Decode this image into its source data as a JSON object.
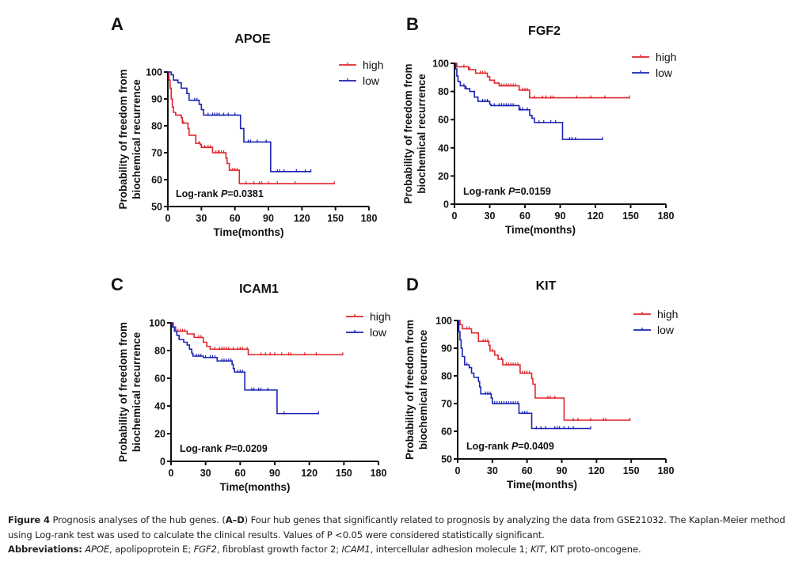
{
  "colors": {
    "high": "#e0242a",
    "low": "#1a23b4",
    "axis": "#111111",
    "text": "#111111"
  },
  "chart_data": [
    {
      "panel": "A",
      "type": "line",
      "subtype": "kaplan-meier",
      "title": "APOE",
      "xlabel": "Time(months)",
      "ylabel": [
        "Probability of freedom from",
        "biochemical recurrence"
      ],
      "xlim": [
        0,
        180
      ],
      "xticks": [
        0,
        30,
        60,
        90,
        120,
        150,
        180
      ],
      "ylim": [
        50,
        100
      ],
      "yticks": [
        50,
        60,
        70,
        80,
        90,
        100
      ],
      "legend": {
        "position": "top-right",
        "entries": [
          "high",
          "low"
        ]
      },
      "annotation": {
        "prefix": "Log-rank ",
        "italic": "P",
        "suffix": "=0.0381"
      },
      "series": [
        {
          "name": "high",
          "steps": [
            [
              0,
              100
            ],
            [
              1,
              97
            ],
            [
              2,
              94
            ],
            [
              3,
              90
            ],
            [
              4,
              87
            ],
            [
              5,
              85
            ],
            [
              7,
              84
            ],
            [
              12,
              83
            ],
            [
              13,
              81
            ],
            [
              18,
              79
            ],
            [
              19,
              76.5
            ],
            [
              25,
              73.5
            ],
            [
              29,
              73
            ],
            [
              30,
              72
            ],
            [
              40,
              70
            ],
            [
              52,
              68
            ],
            [
              53,
              66
            ],
            [
              55,
              63.5
            ],
            [
              64,
              58.5
            ],
            [
              149,
              58.5
            ]
          ],
          "censored": [
            14,
            28,
            33,
            36,
            38,
            43,
            45,
            46,
            48,
            50,
            58,
            60,
            62,
            70,
            77,
            82,
            84,
            90,
            98,
            114,
            149
          ]
        },
        {
          "name": "low",
          "steps": [
            [
              0,
              100
            ],
            [
              3,
              99
            ],
            [
              5,
              97
            ],
            [
              9,
              96
            ],
            [
              12,
              94
            ],
            [
              17,
              92
            ],
            [
              19,
              89.5
            ],
            [
              28,
              88
            ],
            [
              30,
              86
            ],
            [
              32,
              84
            ],
            [
              65,
              79
            ],
            [
              68,
              74
            ],
            [
              92,
              63
            ],
            [
              128,
              63
            ]
          ],
          "censored": [
            24,
            26,
            36,
            40,
            42,
            44,
            46,
            50,
            54,
            60,
            72,
            74,
            80,
            88,
            98,
            100,
            104,
            115,
            123,
            128
          ]
        }
      ]
    },
    {
      "panel": "B",
      "type": "line",
      "subtype": "kaplan-meier",
      "title": "FGF2",
      "xlabel": "Time(months)",
      "ylabel": [
        "Probability of freedom from",
        "biochemical recurrence"
      ],
      "xlim": [
        0,
        180
      ],
      "xticks": [
        0,
        30,
        60,
        90,
        120,
        150,
        180
      ],
      "ylim": [
        0,
        100
      ],
      "yticks": [
        0,
        20,
        40,
        60,
        80,
        100
      ],
      "legend": {
        "position": "top-right",
        "entries": [
          "high",
          "low"
        ]
      },
      "annotation": {
        "prefix": "Log-rank ",
        "italic": "P",
        "suffix": "=0.0159"
      },
      "series": [
        {
          "name": "high",
          "steps": [
            [
              0,
              100
            ],
            [
              2,
              97.5
            ],
            [
              12,
              95.5
            ],
            [
              18,
              93
            ],
            [
              28,
              90.5
            ],
            [
              30,
              88
            ],
            [
              34,
              86
            ],
            [
              38,
              84
            ],
            [
              55,
              81
            ],
            [
              64,
              75.5
            ],
            [
              149,
              75.5
            ]
          ],
          "censored": [
            8,
            13,
            22,
            24,
            26,
            40,
            42,
            44,
            46,
            48,
            50,
            52,
            58,
            60,
            62,
            68,
            75,
            78,
            82,
            84,
            104,
            116,
            128,
            149
          ]
        },
        {
          "name": "low",
          "steps": [
            [
              0,
              100
            ],
            [
              1,
              96
            ],
            [
              2,
              91
            ],
            [
              3,
              87
            ],
            [
              5,
              84
            ],
            [
              9,
              82
            ],
            [
              13,
              80
            ],
            [
              17,
              76
            ],
            [
              20,
              73
            ],
            [
              30,
              71
            ],
            [
              31,
              70
            ],
            [
              55,
              67
            ],
            [
              64,
              63
            ],
            [
              66,
              61
            ],
            [
              68,
              58
            ],
            [
              92,
              46
            ],
            [
              126,
              46
            ]
          ],
          "censored": [
            8,
            10,
            24,
            26,
            28,
            34,
            38,
            40,
            42,
            44,
            46,
            48,
            50,
            56,
            58,
            62,
            72,
            76,
            82,
            86,
            98,
            100,
            103,
            126
          ]
        }
      ]
    },
    {
      "panel": "C",
      "type": "line",
      "subtype": "kaplan-meier",
      "title": "ICAM1",
      "xlabel": "Time(months)",
      "ylabel": [
        "Probability of freedom from",
        "biochemical recurrence"
      ],
      "xlim": [
        0,
        180
      ],
      "xticks": [
        0,
        30,
        60,
        90,
        120,
        150,
        180
      ],
      "ylim": [
        0,
        100
      ],
      "yticks": [
        0,
        20,
        40,
        60,
        80,
        100
      ],
      "legend": {
        "position": "top-right",
        "entries": [
          "high",
          "low"
        ]
      },
      "annotation": {
        "prefix": "Log-rank ",
        "italic": "P",
        "suffix": "=0.0209"
      },
      "series": [
        {
          "name": "high",
          "steps": [
            [
              0,
              100
            ],
            [
              2,
              97
            ],
            [
              4,
              94
            ],
            [
              14,
              92
            ],
            [
              20,
              89.5
            ],
            [
              28,
              86
            ],
            [
              31,
              83
            ],
            [
              34,
              81
            ],
            [
              67,
              77
            ],
            [
              149,
              77
            ]
          ],
          "censored": [
            6,
            8,
            10,
            12,
            24,
            26,
            28,
            38,
            42,
            44,
            46,
            48,
            50,
            54,
            58,
            60,
            62,
            66,
            78,
            82,
            86,
            90,
            96,
            102,
            104,
            116,
            126,
            149
          ]
        },
        {
          "name": "low",
          "steps": [
            [
              0,
              100
            ],
            [
              1,
              97
            ],
            [
              3,
              94
            ],
            [
              5,
              91
            ],
            [
              7,
              88
            ],
            [
              11,
              86
            ],
            [
              14,
              84
            ],
            [
              16,
              81
            ],
            [
              18,
              78
            ],
            [
              19,
              76
            ],
            [
              28,
              75
            ],
            [
              40,
              72.5
            ],
            [
              53,
              70
            ],
            [
              54,
              67
            ],
            [
              55,
              64.5
            ],
            [
              64,
              51.5
            ],
            [
              92,
              34.5
            ],
            [
              128,
              34.5
            ]
          ],
          "censored": [
            22,
            24,
            26,
            30,
            34,
            36,
            38,
            44,
            46,
            48,
            50,
            52,
            58,
            60,
            62,
            70,
            72,
            76,
            78,
            84,
            98,
            128
          ]
        }
      ]
    },
    {
      "panel": "D",
      "type": "line",
      "subtype": "kaplan-meier",
      "title": "KIT",
      "xlabel": "Time(months)",
      "ylabel": [
        "Probability of freedom from",
        "biochemical recurrence"
      ],
      "xlim": [
        0,
        180
      ],
      "xticks": [
        0,
        30,
        60,
        90,
        120,
        150,
        180
      ],
      "ylim": [
        50,
        100
      ],
      "yticks": [
        50,
        60,
        70,
        80,
        90,
        100
      ],
      "legend": {
        "position": "top-right",
        "entries": [
          "high",
          "low"
        ]
      },
      "annotation": {
        "prefix": "Log-rank ",
        "italic": "P",
        "suffix": "=0.0409"
      },
      "series": [
        {
          "name": "high",
          "steps": [
            [
              0,
              100
            ],
            [
              2,
              98.5
            ],
            [
              4,
              97
            ],
            [
              12,
              95.5
            ],
            [
              18,
              92.5
            ],
            [
              27,
              91
            ],
            [
              28,
              89
            ],
            [
              32,
              87.5
            ],
            [
              35,
              86
            ],
            [
              39,
              84
            ],
            [
              54,
              81
            ],
            [
              64,
              79
            ],
            [
              65,
              77
            ],
            [
              67,
              72
            ],
            [
              92,
              64
            ],
            [
              149,
              64
            ]
          ],
          "censored": [
            8,
            10,
            22,
            24,
            26,
            30,
            38,
            42,
            44,
            46,
            48,
            50,
            52,
            56,
            58,
            60,
            62,
            78,
            80,
            84,
            100,
            104,
            115,
            126,
            128,
            149
          ]
        },
        {
          "name": "low",
          "steps": [
            [
              0,
              100
            ],
            [
              1,
              96
            ],
            [
              2,
              93
            ],
            [
              3,
              90
            ],
            [
              4,
              87
            ],
            [
              6,
              84
            ],
            [
              10,
              83
            ],
            [
              12,
              81
            ],
            [
              14,
              79.5
            ],
            [
              18,
              78
            ],
            [
              19,
              76
            ],
            [
              20,
              73.5
            ],
            [
              29,
              72
            ],
            [
              30,
              70
            ],
            [
              53,
              66.5
            ],
            [
              64,
              61
            ],
            [
              115,
              61
            ]
          ],
          "censored": [
            8,
            10,
            24,
            26,
            28,
            32,
            34,
            36,
            38,
            40,
            42,
            44,
            46,
            48,
            50,
            52,
            56,
            58,
            60,
            68,
            72,
            76,
            84,
            86,
            88,
            92,
            96,
            100,
            115
          ]
        }
      ]
    }
  ],
  "caption": {
    "figure_label": "Figure 4",
    "line1_text1": " Prognosis analyses of the hub genes. (",
    "line1_bold_range": "A–D",
    "line1_text2": ") Four hub genes that significantly related to prognosis by analyzing the data from GSE21032. The Kaplan-Meier method",
    "line2": "using Log-rank test was used to calculate the clinical results. Values of P <0.05 were considered statistically significant.",
    "abbrev_label": "Abbreviations:",
    "abbrev": [
      {
        "term": "APOE",
        "definition": ", apolipoprotein E; "
      },
      {
        "term": "FGF2",
        "definition": ", fibroblast growth factor 2; "
      },
      {
        "term": "ICAM1",
        "definition": ", intercellular adhesion molecule 1; "
      },
      {
        "term": "KIT",
        "definition": ", KIT proto-oncogene."
      }
    ]
  }
}
